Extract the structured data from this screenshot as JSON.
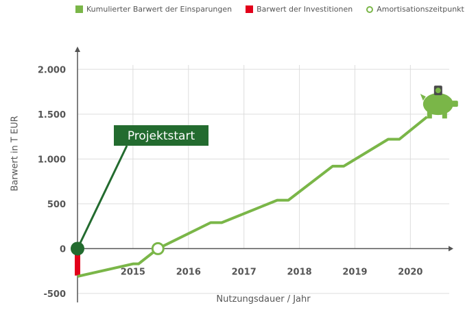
{
  "legend": {
    "savings_label": "Kumulierter Barwert der Einsparungen",
    "investment_label": "Barwert der Investitionen",
    "payback_label": "Amortisationszeitpunkt"
  },
  "colors": {
    "savings": "#7ab648",
    "investment": "#e2001a",
    "start": "#236b2f",
    "grid": "#dddddd",
    "axis": "#555555"
  },
  "annotation": {
    "start_label": "Projektstart"
  },
  "chart_data": {
    "type": "line",
    "title": "",
    "xlabel": "Nutzungsdauer / Jahr",
    "ylabel": "Barwert in T EUR",
    "xlim": [
      2014.0,
      2020.7
    ],
    "ylim": [
      -600,
      2300
    ],
    "x_ticks": [
      2015,
      2016,
      2017,
      2018,
      2019,
      2020
    ],
    "x_tick_labels": [
      "2015",
      "2016",
      "2017",
      "2018",
      "2019",
      "2020"
    ],
    "y_ticks": [
      -500,
      0,
      500,
      1000,
      1500,
      2000
    ],
    "y_tick_labels": [
      "-500",
      "0",
      "500",
      "1.000",
      "1.500",
      "2.000"
    ],
    "grid": true,
    "legend_position": "top",
    "series": [
      {
        "name": "Kumulierter Barwert der Einsparungen",
        "x": [
          2014.0,
          2015.0,
          2015.1,
          2015.45,
          2016.4,
          2016.6,
          2017.6,
          2017.8,
          2018.6,
          2018.8,
          2019.6,
          2019.8,
          2020.3
        ],
        "y": [
          -310,
          -170,
          -170,
          0,
          290,
          290,
          540,
          540,
          920,
          920,
          1220,
          1220,
          1470
        ]
      },
      {
        "name": "Barwert der Investitionen",
        "type": "bar",
        "x": [
          2014.0
        ],
        "y": [
          -300
        ]
      }
    ],
    "project_start": {
      "x": 2014.0,
      "y": 0
    },
    "payback_point": {
      "x": 2015.45,
      "y": 0
    },
    "piggy_bank": {
      "x": 2020.5,
      "y": 1650
    }
  }
}
